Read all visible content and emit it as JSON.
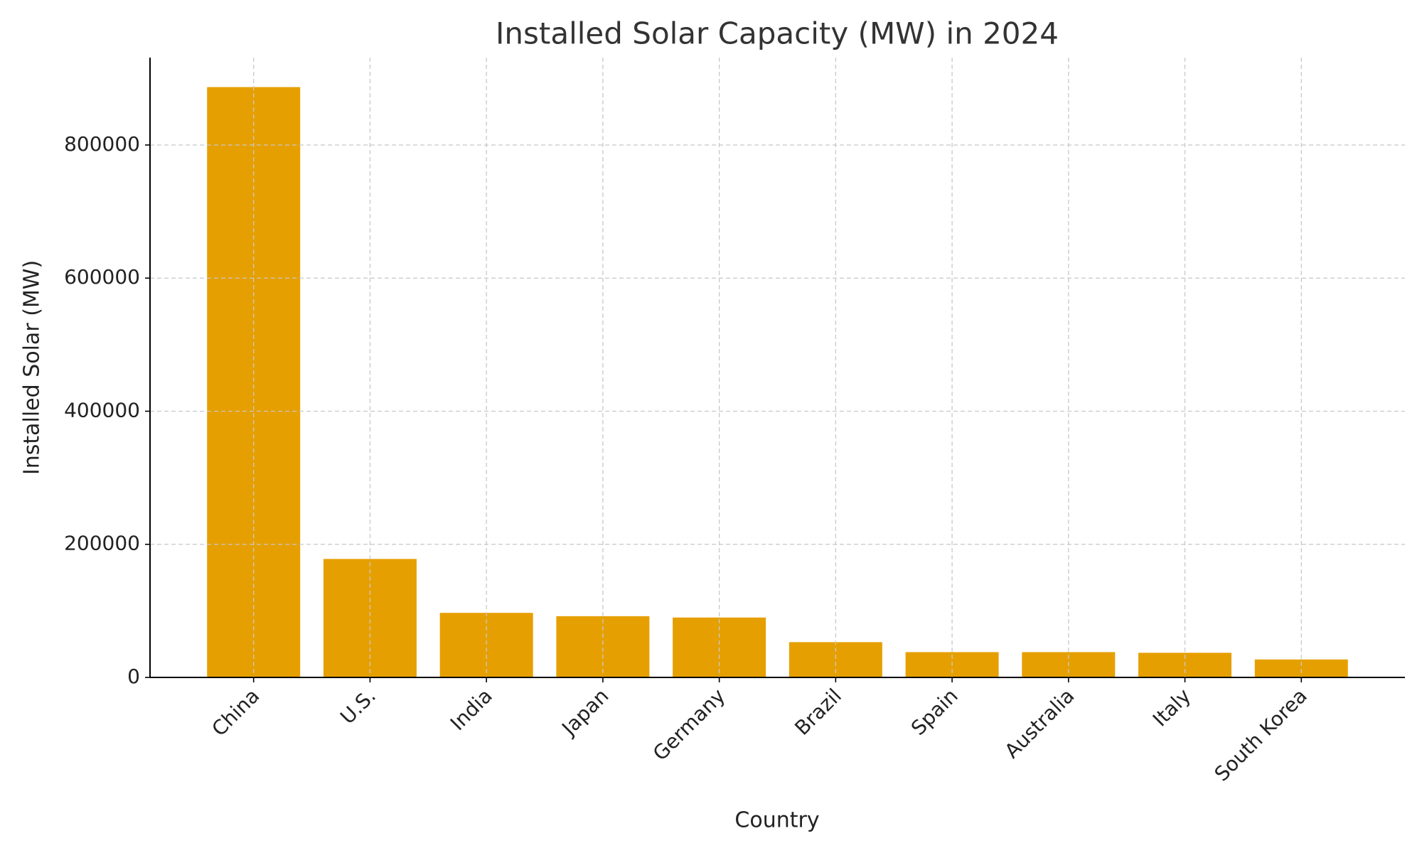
{
  "chart_data": {
    "type": "bar",
    "title": "Installed Solar Capacity (MW) in 2024",
    "x_label": "Country",
    "y_label": "Installed Solar (MW)",
    "categories": [
      "China",
      "U.S.",
      "India",
      "Japan",
      "Germany",
      "Brazil",
      "Spain",
      "Australia",
      "Italy",
      "South Korea"
    ],
    "values": [
      887000,
      178000,
      97000,
      92000,
      90000,
      53000,
      38000,
      38000,
      37000,
      27000
    ],
    "color": "#e69f00",
    "ylim": [
      0,
      931350
    ],
    "yticks": [
      0,
      200000,
      400000,
      600000,
      800000
    ],
    "grid": true
  }
}
